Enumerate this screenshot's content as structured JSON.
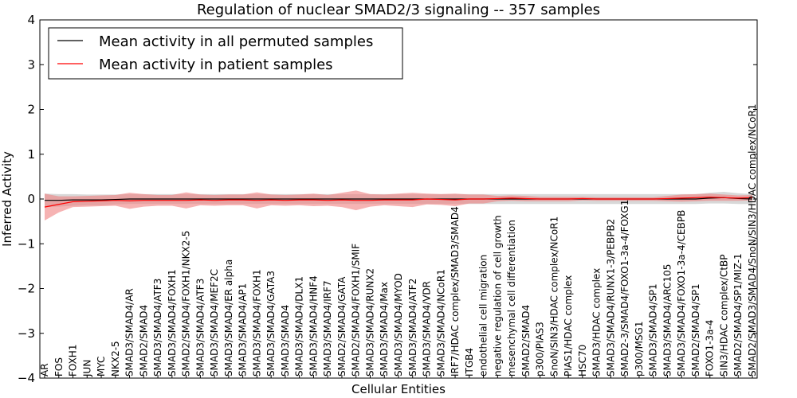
{
  "chart_data": {
    "type": "line",
    "title": "Regulation of nuclear SMAD2/3 signaling -- 357 samples",
    "xlabel": "Cellular Entities",
    "ylabel": "Inferred Activity",
    "ylim": [
      -4,
      4
    ],
    "yticks": [
      -4,
      -3,
      -2,
      -1,
      0,
      1,
      2,
      3,
      4
    ],
    "ytick_labels": [
      "−4",
      "−3",
      "−2",
      "−1",
      "0",
      "1",
      "2",
      "3",
      "4"
    ],
    "grid": false,
    "legend_position": "top-left",
    "entities": [
      "AR",
      "FOS",
      "FOXH1",
      "JUN",
      "MYC",
      "NKX2-5",
      "SMAD3/SMAD4/AR",
      "SMAD2/SMAD4",
      "SMAD3/SMAD4/ATF3",
      "SMAD3/SMAD4/FOXH1",
      "SMAD2/SMAD4/FOXH1/NKX2-5",
      "SMAD3/SMAD4/ATF3",
      "SMAD3/SMAD4/MEF2C",
      "SMAD3/SMAD4/ER alpha",
      "SMAD3/SMAD4/AP1",
      "SMAD3/SMAD4/FOXH1",
      "SMAD3/SMAD4/GATA3",
      "SMAD3/SMAD4",
      "SMAD3/SMAD4/DLX1",
      "SMAD3/SMAD4/HNF4",
      "SMAD3/SMAD4/IRF7",
      "SMAD2/SMAD4/GATA",
      "SMAD2/SMAD4/FOXH1/SMIF",
      "SMAD3/SMAD4/RUNX2",
      "SMAD3/SMAD4/Max",
      "SMAD3/SMAD4/MYOD",
      "SMAD3/SMAD4/ATF2",
      "SMAD3/SMAD4/VDR",
      "SMAD3/SMAD4/NCoR1",
      "IRF7/HDAC complex/SMAD3/SMAD4",
      "ITGB4",
      "endothelial cell migration",
      "negative regulation of cell growth",
      "mesenchymal cell differentiation",
      "SMAD2/SMAD4",
      "p300/PIAS3",
      "SnoN/SIN3/HDAC complex/NCoR1",
      "PIAS1/HDAC complex",
      "HSC70",
      "SMAD3/HDAC complex",
      "SMAD3/SMAD4/RUNX1-3/PEBPB2",
      "SMAD2-3/SMAD4/FOXO1-3a-4/FOXG1",
      "p300/MSG1",
      "SMAD3/SMAD4/SP1",
      "SMAD3/SMAD4/ARC105",
      "SMAD3/SMAD4/FOXO1-3a-4/CEBPB",
      "SMAD2/SMAD4/SP1",
      "FOXO1-3a-4",
      "SIN3/HDAC complex/CtBP",
      "SMAD2/SMAD4/SP1/MIZ-1",
      "SMAD2/SMAD3/SMAD4/SnoN/SIN3/HDAC complex/NCoR1"
    ],
    "series": [
      {
        "name": "Mean activity in all permuted samples",
        "color": "#000000",
        "values": [
          -0.03,
          -0.03,
          -0.02,
          -0.02,
          -0.02,
          -0.01,
          0.0,
          0.0,
          0.0,
          0.0,
          0.0,
          0.0,
          0.0,
          0.0,
          0.0,
          0.0,
          0.0,
          0.0,
          0.0,
          0.0,
          0.0,
          0.0,
          0.0,
          0.0,
          0.0,
          0.0,
          0.0,
          0.0,
          0.0,
          0.0,
          0.0,
          0.0,
          0.0,
          0.0,
          0.0,
          0.0,
          0.0,
          0.0,
          0.0,
          0.0,
          0.0,
          0.0,
          0.0,
          0.0,
          0.0,
          0.0,
          0.0,
          0.02,
          0.03,
          0.01,
          0.0
        ],
        "band": [
          0.15,
          0.14,
          0.13,
          0.12,
          0.12,
          0.11,
          0.11,
          0.11,
          0.11,
          0.11,
          0.11,
          0.11,
          0.11,
          0.11,
          0.11,
          0.11,
          0.11,
          0.11,
          0.11,
          0.11,
          0.11,
          0.11,
          0.11,
          0.11,
          0.11,
          0.11,
          0.11,
          0.11,
          0.11,
          0.11,
          0.11,
          0.11,
          0.11,
          0.11,
          0.11,
          0.11,
          0.11,
          0.11,
          0.11,
          0.11,
          0.11,
          0.11,
          0.11,
          0.11,
          0.11,
          0.11,
          0.11,
          0.12,
          0.13,
          0.12,
          0.11
        ],
        "band_color": "#c8c8c8"
      },
      {
        "name": "Mean activity in patient samples",
        "color": "#ff0000",
        "values": [
          -0.18,
          -0.12,
          -0.06,
          -0.05,
          -0.04,
          -0.03,
          -0.04,
          -0.03,
          -0.03,
          -0.03,
          -0.03,
          -0.02,
          -0.03,
          -0.02,
          -0.02,
          -0.03,
          -0.02,
          -0.03,
          -0.02,
          -0.02,
          -0.03,
          -0.02,
          -0.03,
          -0.03,
          -0.02,
          -0.02,
          -0.02,
          0.0,
          -0.01,
          -0.02,
          0.0,
          0.0,
          0.01,
          0.02,
          0.01,
          0.0,
          0.0,
          0.0,
          0.01,
          0.0,
          0.0,
          0.0,
          0.0,
          0.0,
          0.01,
          0.02,
          0.03,
          0.04,
          0.03,
          0.02,
          0.03
        ],
        "band": [
          0.3,
          0.18,
          0.12,
          0.12,
          0.12,
          0.12,
          0.18,
          0.14,
          0.12,
          0.12,
          0.18,
          0.12,
          0.12,
          0.12,
          0.12,
          0.18,
          0.12,
          0.12,
          0.12,
          0.14,
          0.12,
          0.16,
          0.22,
          0.14,
          0.12,
          0.14,
          0.16,
          0.12,
          0.12,
          0.14,
          0.1,
          0.1,
          0.06,
          0.06,
          0.06,
          0.05,
          0.05,
          0.05,
          0.04,
          0.04,
          0.04,
          0.04,
          0.04,
          0.04,
          0.06,
          0.08,
          0.08,
          0.08,
          0.07,
          0.06,
          0.06
        ],
        "band_color": "#f08080"
      }
    ]
  }
}
